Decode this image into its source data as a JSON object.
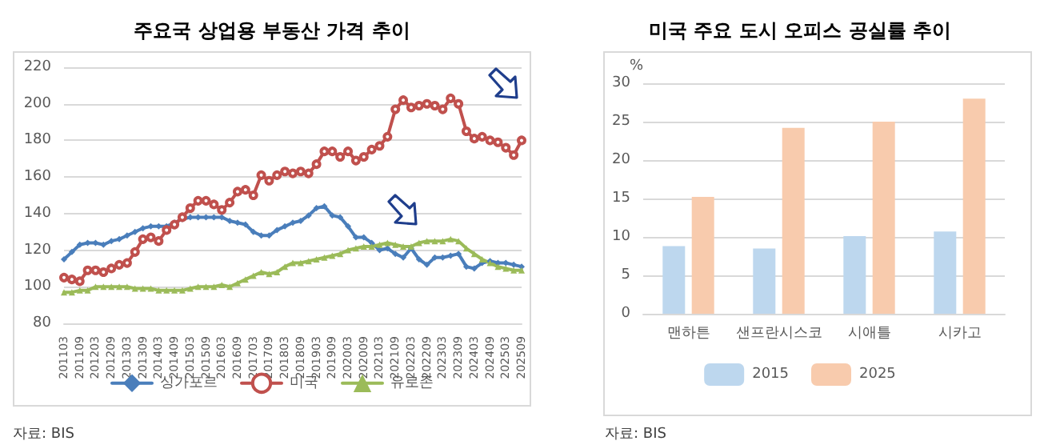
{
  "chart_data": [
    {
      "type": "line",
      "title": "주요국 상업용 부동산 가격 추이",
      "annotations": [
        "자료: BIS"
      ],
      "categories": [
        "201103",
        null,
        "201109",
        null,
        "201203",
        null,
        "201209",
        null,
        "201303",
        null,
        "201309",
        null,
        "201403",
        null,
        "201409",
        null,
        "201503",
        null,
        "201509",
        null,
        "201603",
        null,
        "201609",
        null,
        "201703",
        null,
        "201709",
        null,
        "201803",
        null,
        "201809",
        null,
        "201903",
        null,
        "201909",
        null,
        "202003",
        null,
        "202009",
        null,
        "202103",
        null,
        "202109",
        null,
        "202203",
        null,
        "202209",
        null,
        "202303",
        null,
        "202309",
        null,
        "202403",
        null,
        "202409",
        null,
        "202503",
        null,
        "202509"
      ],
      "series": [
        {
          "name": "싱가포르",
          "color": "#4a7ebb",
          "marker": "diamond",
          "values": [
            115,
            119,
            123,
            124,
            124,
            123,
            125,
            126,
            128,
            130,
            132,
            133,
            133,
            133,
            135,
            137,
            138,
            138,
            138,
            138,
            138,
            136,
            135,
            134,
            130,
            128,
            128,
            131,
            133,
            135,
            136,
            139,
            143,
            144,
            139,
            138,
            133,
            127,
            127,
            124,
            120,
            121,
            118,
            116,
            121,
            115,
            112,
            116,
            116,
            117,
            118,
            111,
            110,
            113,
            114,
            113,
            113,
            112,
            111
          ]
        },
        {
          "name": "미국",
          "color": "#c0504d",
          "marker": "circle",
          "values": [
            105,
            104,
            103,
            109,
            109,
            108,
            110,
            112,
            113,
            119,
            126,
            127,
            125,
            131,
            134,
            138,
            143,
            147,
            147,
            145,
            142,
            146,
            152,
            153,
            150,
            161,
            158,
            161,
            163,
            162,
            163,
            162,
            167,
            174,
            174,
            171,
            174,
            169,
            171,
            175,
            177,
            182,
            197,
            202,
            198,
            199,
            200,
            199,
            197,
            203,
            200,
            185,
            181,
            182,
            180,
            179,
            176,
            172,
            180
          ]
        },
        {
          "name": "유로존",
          "color": "#9bbb59",
          "marker": "triangle",
          "values": [
            97,
            97,
            98,
            98,
            100,
            100,
            100,
            100,
            100,
            99,
            99,
            99,
            98,
            98,
            98,
            98,
            99,
            100,
            100,
            100,
            101,
            100,
            102,
            104,
            106,
            108,
            107,
            108,
            111,
            113,
            113,
            114,
            115,
            116,
            117,
            118,
            120,
            121,
            122,
            122,
            123,
            124,
            123,
            122,
            122,
            124,
            125,
            125,
            125,
            126,
            125,
            121,
            118,
            115,
            113,
            111,
            110,
            109,
            109
          ]
        }
      ],
      "ylim": [
        80,
        220
      ],
      "yticks": [
        80,
        100,
        120,
        140,
        160,
        180,
        200,
        220
      ],
      "grid": "y",
      "legend": "bottom",
      "line_style": "solid"
    },
    {
      "type": "bar",
      "title": "미국 주요 도시 오피스 공실률 추이",
      "ylabel": "%",
      "annotations": [
        "자료: BIS"
      ],
      "categories": [
        "맨하튼",
        "샌프란시스코",
        "시애틀",
        "시카고"
      ],
      "series": [
        {
          "name": "2015",
          "color": "#bdd7ee",
          "values": [
            8.8,
            8.5,
            10.1,
            10.7
          ]
        },
        {
          "name": "2025",
          "color": "#f8cbad",
          "values": [
            15.2,
            24.2,
            25,
            28
          ]
        }
      ],
      "ylim": [
        0,
        30
      ],
      "yticks": [
        0,
        5,
        10,
        15,
        20,
        25,
        30
      ],
      "grid": "y",
      "legend": "bottom"
    }
  ]
}
